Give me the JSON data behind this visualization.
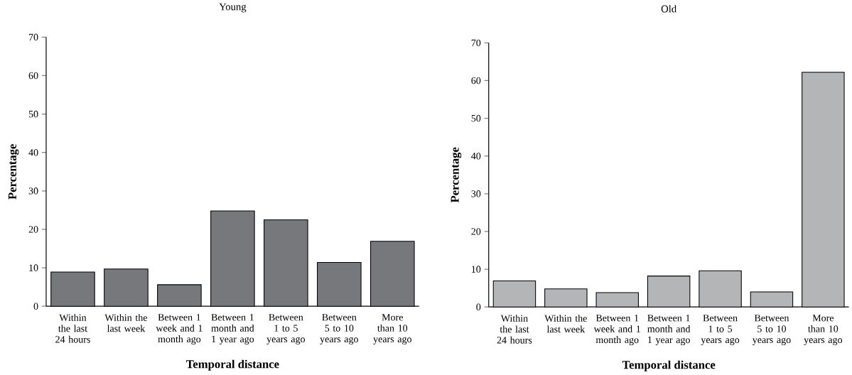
{
  "chart_data": [
    {
      "type": "bar",
      "title": "Young",
      "xlabel": "Temporal distance",
      "ylabel": "Percentage",
      "categories": [
        "Within the last 24 hours",
        "Within the last week",
        "Between 1 week and 1 month ago",
        "Between 1 month and 1 year ago",
        "Between 1 to 5 years ago",
        "Between 5 to 10 years ago",
        "More than 10 years ago"
      ],
      "values": [
        8.9,
        9.7,
        5.6,
        24.8,
        22.5,
        11.4,
        16.9
      ],
      "color": "#77787c",
      "ylim": [
        0,
        70
      ],
      "yticks": [
        0,
        10,
        20,
        30,
        40,
        50,
        60,
        70
      ]
    },
    {
      "type": "bar",
      "title": "Old",
      "xlabel": "Temporal distance",
      "ylabel": "Percentage",
      "categories": [
        "Within the last 24 hours",
        "Within the last week",
        "Between 1 week and 1 month ago",
        "Between 1 month and 1 year ago",
        "Between 1 to 5 years ago",
        "Between 5 to 10 years ago",
        "More than 10 years ago"
      ],
      "values": [
        6.9,
        4.8,
        3.8,
        8.2,
        9.6,
        4.0,
        62.2
      ],
      "color": "#b4b5b7",
      "ylim": [
        0,
        70
      ],
      "yticks": [
        0,
        10,
        20,
        30,
        40,
        50,
        60,
        70
      ]
    }
  ]
}
